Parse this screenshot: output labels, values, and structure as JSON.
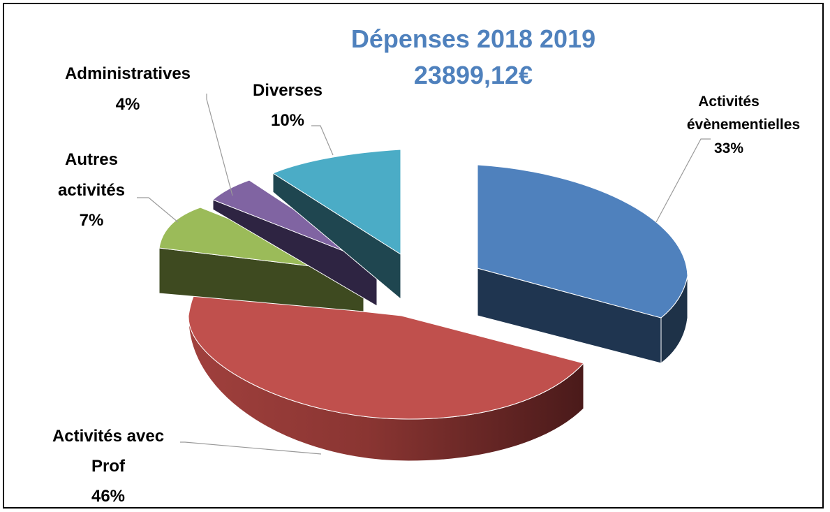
{
  "chart_data": {
    "type": "pie",
    "title_line1": "Dépenses 2018 2019",
    "title_line2": "23899,12€",
    "title_color": "#4f81bd",
    "slices": [
      {
        "name_lines": [
          "Activités",
          "évènementielles"
        ],
        "pct_label": "33%",
        "value": 33,
        "color": "#4f81bd"
      },
      {
        "name_lines": [
          "Activités avec",
          "Prof"
        ],
        "pct_label": "46%",
        "value": 46,
        "color": "#c0504d"
      },
      {
        "name_lines": [
          "Autres",
          "activités"
        ],
        "pct_label": "7%",
        "value": 7,
        "color": "#9bbb59"
      },
      {
        "name_lines": [
          "Administratives"
        ],
        "pct_label": "4%",
        "value": 4,
        "color": "#8064a2"
      },
      {
        "name_lines": [
          "Diverses"
        ],
        "pct_label": "10%",
        "value": 10,
        "color": "#4bacc6"
      }
    ]
  }
}
